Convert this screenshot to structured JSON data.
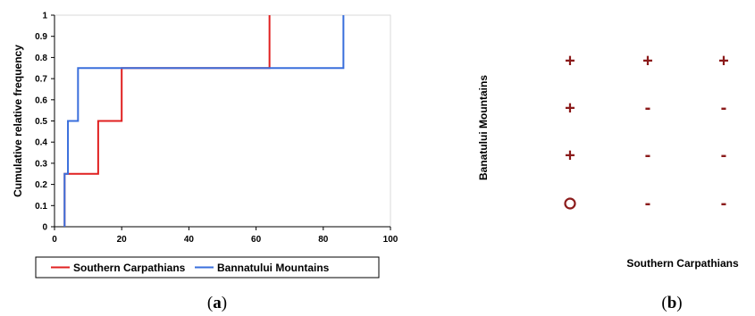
{
  "chart_data": [
    {
      "type": "line",
      "step": true,
      "xlabel": "",
      "ylabel": "Cumulative relative frequency",
      "xlim": [
        0,
        100
      ],
      "ylim": [
        0,
        1
      ],
      "x_ticks": [
        0,
        20,
        40,
        60,
        80,
        100
      ],
      "y_ticks": [
        0,
        0.1,
        0.2,
        0.3,
        0.4,
        0.5,
        0.6,
        0.7,
        0.8,
        0.9,
        1
      ],
      "grid": false,
      "legend_position": "bottom",
      "series": [
        {
          "name": "Southern Carpathians",
          "color": "#e02020",
          "points": [
            [
              3,
              0
            ],
            [
              3,
              0.25
            ],
            [
              13,
              0.25
            ],
            [
              13,
              0.5
            ],
            [
              20,
              0.5
            ],
            [
              20,
              0.75
            ],
            [
              64,
              0.75
            ],
            [
              64,
              1
            ]
          ]
        },
        {
          "name": "Bannatului Mountains",
          "color": "#3a6fdc",
          "points": [
            [
              3,
              0
            ],
            [
              3,
              0.25
            ],
            [
              4,
              0.25
            ],
            [
              4,
              0.5
            ],
            [
              7,
              0.5
            ],
            [
              7,
              0.75
            ],
            [
              86,
              0.75
            ],
            [
              86,
              1
            ]
          ]
        }
      ],
      "panel_label": "a"
    },
    {
      "type": "table",
      "xlabel": "Southern Carpathians",
      "ylabel": "Banatului Mountains",
      "symbol_color": "#8b1a1a",
      "rows": [
        [
          "+",
          "+",
          "+"
        ],
        [
          "+",
          "-",
          "-"
        ],
        [
          "+",
          "-",
          "-"
        ],
        [
          "o",
          "-",
          "-"
        ]
      ],
      "panel_label": "b"
    }
  ]
}
